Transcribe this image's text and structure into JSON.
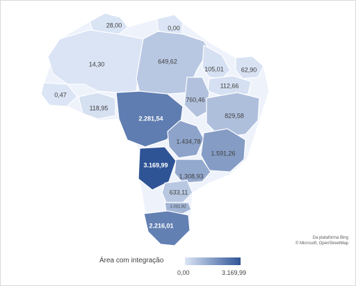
{
  "chart_data": {
    "type": "choropleth",
    "region": "Brazil (states)",
    "regions": [
      {
        "value": "28,00"
      },
      {
        "value": "0,00"
      },
      {
        "value": "14,30"
      },
      {
        "value": "649,62"
      },
      {
        "value": "105,01"
      },
      {
        "value": "62,90"
      },
      {
        "value": "0,47"
      },
      {
        "value": "112,66"
      },
      {
        "value": "760,46"
      },
      {
        "value": "118,95"
      },
      {
        "value": "829,58"
      },
      {
        "value": "2.281,54"
      },
      {
        "value": "1.434,78"
      },
      {
        "value": "1.591,26"
      },
      {
        "value": "3.169,99"
      },
      {
        "value": "1.308,93"
      },
      {
        "value": "633,11"
      },
      {
        "value": "1.031,92"
      },
      {
        "value": "2.216,01"
      }
    ],
    "legend": {
      "title": "Área com integração",
      "min": "0,00",
      "max": "3.169,99"
    },
    "color_scale": {
      "low": "#dbe5f5",
      "high": "#2f5496"
    }
  },
  "credit": {
    "line1": "Da plataforma Bing",
    "line2": "© Microsoft, OpenStreetMap"
  }
}
